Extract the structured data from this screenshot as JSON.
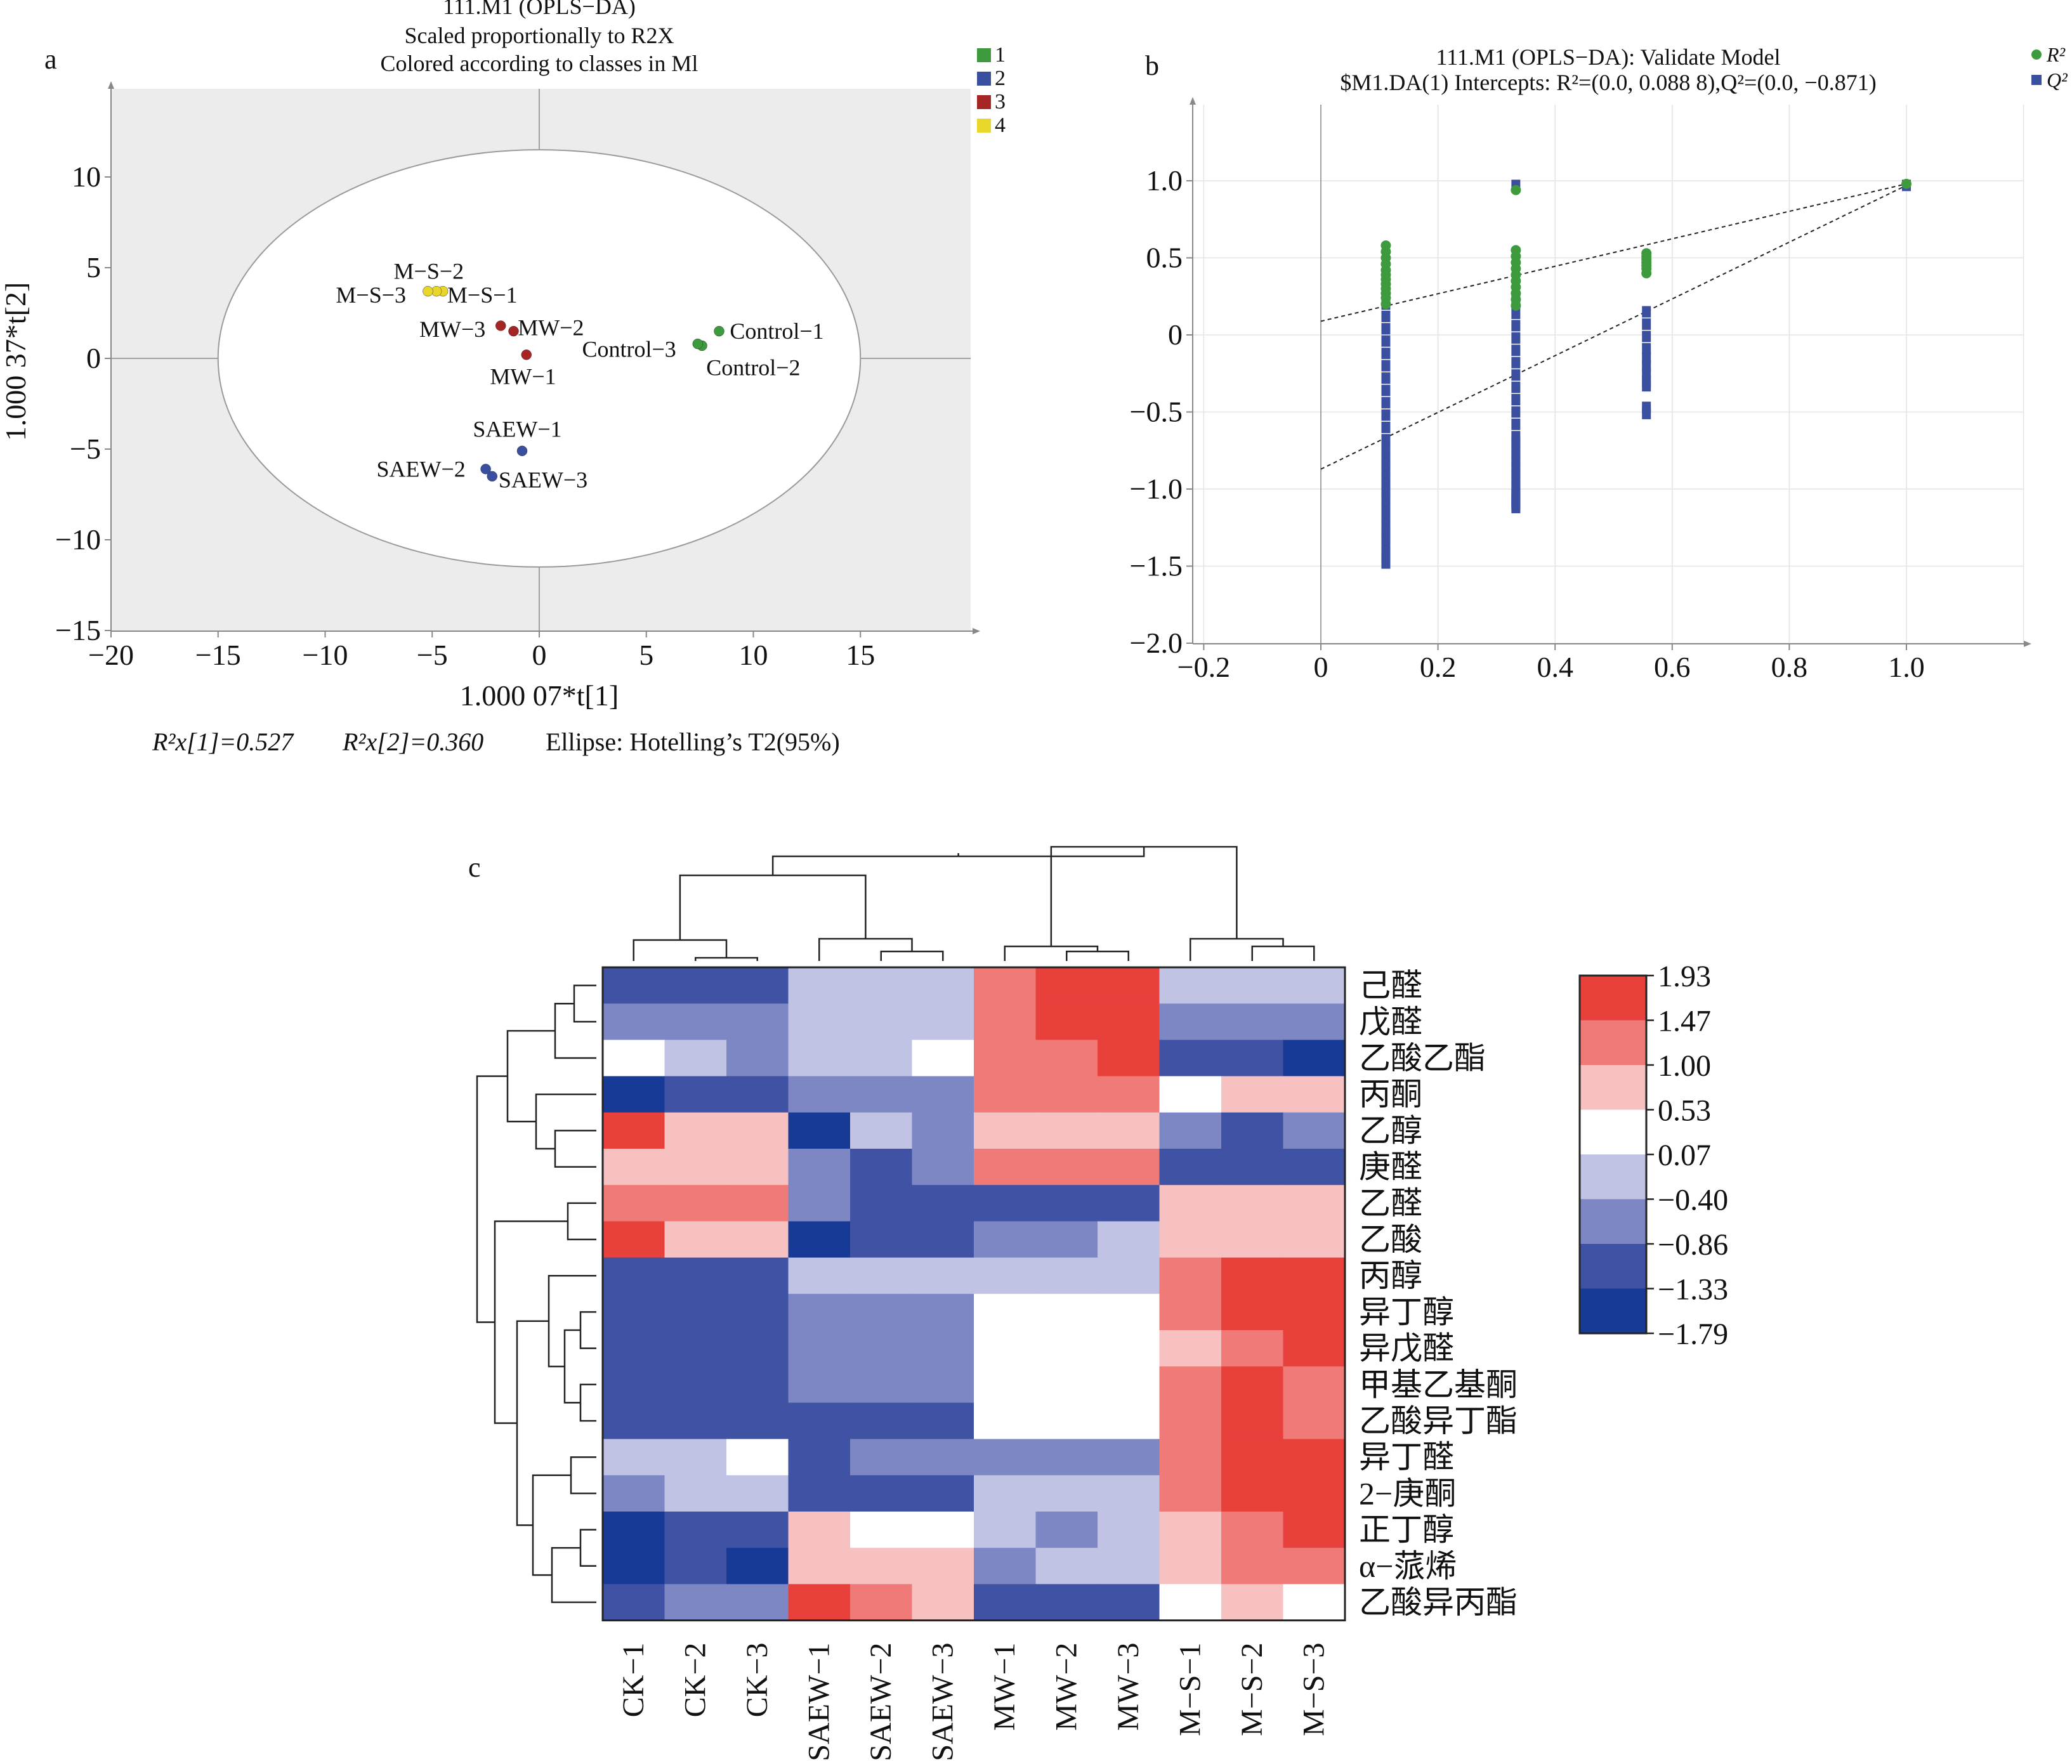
{
  "panel_a": {
    "letter": "a",
    "title_lines": [
      "111.M1 (OPLS−DA)",
      "Scaled proportionally to R2X",
      "Colored according to classes in Ml"
    ],
    "legend": [
      {
        "label": "1",
        "color": "#3d9a3d"
      },
      {
        "label": "2",
        "color": "#3a4fa0"
      },
      {
        "label": "3",
        "color": "#a52424"
      },
      {
        "label": "4",
        "color": "#e8d62a"
      }
    ],
    "xlabel": "1.000 07*t[1]",
    "ylabel": "1.000 37*t[2]",
    "footer": {
      "r2x1": "R²x[1]=0.527",
      "r2x2": "R²x[2]=0.360",
      "ellipse": "Ellipse: Hotelling’s T2(95%)"
    }
  },
  "panel_b": {
    "letter": "b",
    "title_lines": [
      "111.M1 (OPLS−DA): Validate Model",
      "$M1.DA(1) Intercepts: R²=(0.0, 0.088 8),Q²=(0.0, −0.871)"
    ],
    "legend": [
      {
        "label": "R²",
        "color": "#3d9a3d",
        "shape": "circle"
      },
      {
        "label": "Q²",
        "color": "#3a4fa0",
        "shape": "square"
      }
    ]
  },
  "panel_c": {
    "letter": "c",
    "colorbar": {
      "labels": [
        "1.93",
        "1.47",
        "1.00",
        "0.53",
        "0.07",
        "−0.40",
        "−0.86",
        "−1.33",
        "−1.79"
      ],
      "colors": [
        "#e8413c",
        "#f07a78",
        "#f7c0c1",
        "#ffffff",
        "#c0c3e3",
        "#7d87c4",
        "#4052a4",
        "#173a96"
      ]
    }
  },
  "chart_data": [
    {
      "type": "scatter",
      "panel": "a",
      "xlim": [
        -20,
        20
      ],
      "ylim": [
        -15,
        15
      ],
      "xticks": [
        -20,
        -15,
        -10,
        -5,
        0,
        5,
        10,
        15
      ],
      "yticks": [
        10,
        5,
        0,
        -5,
        -10,
        -15
      ],
      "tick_labels_x": [
        "−20",
        "−15",
        "−10",
        "−5",
        "0",
        "5",
        "10",
        "15"
      ],
      "tick_labels_y": [
        "10",
        "5",
        "0",
        "−5",
        "−10",
        "−15"
      ],
      "ellipse": {
        "cx": 0,
        "cy": 0,
        "rx": 15,
        "ry": 11.5
      },
      "points": [
        {
          "label": "Control-1",
          "x": 8.4,
          "y": 1.5,
          "cls": 1
        },
        {
          "label": "Control-2",
          "x": 7.6,
          "y": 0.7,
          "cls": 1
        },
        {
          "label": "Control-3",
          "x": 7.4,
          "y": 0.8,
          "cls": 1
        },
        {
          "label": "MW-1",
          "x": -0.6,
          "y": 0.2,
          "cls": 3
        },
        {
          "label": "MW-2",
          "x": -1.2,
          "y": 1.5,
          "cls": 3
        },
        {
          "label": "MW-3",
          "x": -1.8,
          "y": 1.8,
          "cls": 3
        },
        {
          "label": "M-S-1",
          "x": -4.5,
          "y": 3.7,
          "cls": 4
        },
        {
          "label": "M-S-2",
          "x": -4.8,
          "y": 3.7,
          "cls": 4
        },
        {
          "label": "M-S-3",
          "x": -5.2,
          "y": 3.7,
          "cls": 4
        },
        {
          "label": "SAEW-1",
          "x": -0.8,
          "y": -5.1,
          "cls": 2
        },
        {
          "label": "SAEW-2",
          "x": -2.5,
          "y": -6.1,
          "cls": 2
        },
        {
          "label": "SAEW-3",
          "x": -2.2,
          "y": -6.5,
          "cls": 2
        }
      ],
      "point_labels": [
        {
          "text": "Control−1",
          "x": 8.9,
          "y": 1.5
        },
        {
          "text": "Control−3",
          "x": 2.0,
          "y": 0.5
        },
        {
          "text": "Control−2",
          "x": 7.8,
          "y": -0.5
        },
        {
          "text": "MW−2",
          "x": -1.0,
          "y": 1.7
        },
        {
          "text": "MW−3",
          "x": -5.6,
          "y": 1.6
        },
        {
          "text": "MW−1",
          "x": -2.3,
          "y": -1.0
        },
        {
          "text": "M−S−2",
          "x": -6.8,
          "y": 4.8
        },
        {
          "text": "M−S−3",
          "x": -9.5,
          "y": 3.5
        },
        {
          "text": "M−S−1",
          "x": -4.3,
          "y": 3.5
        },
        {
          "text": "SAEW−1",
          "x": -3.1,
          "y": -3.9
        },
        {
          "text": "SAEW−2",
          "x": -7.6,
          "y": -6.1
        },
        {
          "text": "SAEW−3",
          "x": -1.9,
          "y": -6.7
        }
      ]
    },
    {
      "type": "scatter",
      "panel": "b",
      "xlim": [
        -0.2,
        1.2
      ],
      "ylim": [
        -2.0,
        1.4
      ],
      "xticks": [
        -0.2,
        0,
        0.2,
        0.4,
        0.6,
        0.8,
        1.0
      ],
      "yticks": [
        1.0,
        0.5,
        0,
        -0.5,
        -1.0,
        -1.5,
        -2.0
      ],
      "tick_labels_x": [
        "−0.2",
        "0",
        "0.2",
        "0.4",
        "0.6",
        "0.8",
        "1.0"
      ],
      "tick_labels_y": [
        "1.0",
        "0.5",
        "0",
        "−0.5",
        "−1.0",
        "−1.5",
        "−2.0"
      ],
      "series": [
        {
          "name": "R²",
          "x": [
            0.111,
            0.111,
            0.111,
            0.111,
            0.111,
            0.111,
            0.111,
            0.111,
            0.111,
            0.111,
            0.111,
            0.111,
            0.333,
            0.333,
            0.333,
            0.333,
            0.333,
            0.333,
            0.333,
            0.333,
            0.333,
            0.333,
            0.333,
            0.556,
            0.556,
            0.556,
            0.556,
            0.556,
            0.556,
            0.556,
            1.0
          ],
          "y": [
            0.58,
            0.54,
            0.5,
            0.46,
            0.42,
            0.39,
            0.36,
            0.33,
            0.3,
            0.27,
            0.24,
            0.2,
            0.94,
            0.55,
            0.51,
            0.47,
            0.43,
            0.39,
            0.35,
            0.31,
            0.27,
            0.23,
            0.19,
            0.53,
            0.51,
            0.49,
            0.47,
            0.45,
            0.43,
            0.4,
            0.98
          ]
        },
        {
          "name": "Q²",
          "x": [
            0.111,
            0.111,
            0.111,
            0.111,
            0.111,
            0.111,
            0.111,
            0.111,
            0.111,
            0.111,
            0.111,
            0.111,
            0.111,
            0.111,
            0.111,
            0.111,
            0.111,
            0.111,
            0.111,
            0.111,
            0.111,
            0.111,
            0.111,
            0.111,
            0.111,
            0.111,
            0.111,
            0.111,
            0.111,
            0.111,
            0.333,
            0.333,
            0.333,
            0.333,
            0.333,
            0.333,
            0.333,
            0.333,
            0.333,
            0.333,
            0.333,
            0.333,
            0.333,
            0.333,
            0.333,
            0.333,
            0.333,
            0.333,
            0.333,
            0.333,
            0.333,
            0.333,
            0.333,
            0.333,
            0.333,
            0.333,
            0.333,
            0.333,
            0.556,
            0.556,
            0.556,
            0.556,
            0.556,
            0.556,
            0.556,
            0.556,
            0.556,
            0.556,
            0.556,
            1.0
          ],
          "y": [
            0.2,
            0.12,
            0.04,
            -0.04,
            -0.12,
            -0.2,
            -0.28,
            -0.36,
            -0.44,
            -0.52,
            -0.6,
            -0.68,
            -0.74,
            -0.8,
            -0.84,
            -0.88,
            -0.93,
            -0.98,
            -1.02,
            -1.06,
            -1.12,
            -1.18,
            -1.24,
            -1.28,
            -1.32,
            -1.36,
            -1.41,
            -1.44,
            -1.46,
            -1.48,
            0.97,
            0.22,
            0.14,
            0.06,
            -0.02,
            -0.1,
            -0.18,
            -0.26,
            -0.34,
            -0.42,
            -0.5,
            -0.58,
            -0.66,
            -0.7,
            -0.74,
            -0.78,
            -0.82,
            -0.86,
            -0.9,
            -0.94,
            -0.98,
            -1.02,
            -1.04,
            -1.06,
            -1.08,
            -1.09,
            -1.1,
            -1.12,
            0.15,
            0.07,
            -0.01,
            -0.09,
            -0.15,
            -0.2,
            -0.25,
            -0.3,
            -0.33,
            -0.47,
            -0.51,
            0.97
          ]
        }
      ],
      "regression_lines": [
        {
          "name": "R²",
          "x": [
            0,
            1.0
          ],
          "y": [
            0.0888,
            0.98
          ]
        },
        {
          "name": "Q²",
          "x": [
            0,
            1.0
          ],
          "y": [
            -0.871,
            0.97
          ]
        }
      ]
    },
    {
      "type": "heatmap",
      "panel": "c",
      "columns": [
        "CK−1",
        "CK−2",
        "CK−3",
        "SAEW−1",
        "SAEW−2",
        "SAEW−3",
        "MW−1",
        "MW−2",
        "MW−3",
        "M−S−1",
        "M−S−2",
        "M−S−3"
      ],
      "rows": [
        "己醛",
        "戊醛",
        "乙酸乙酯",
        "丙酮",
        "乙醇",
        "庚醛",
        "乙醛",
        "乙酸",
        "丙醇",
        "异丁醇",
        "异戊醛",
        "甲基乙基酮",
        "乙酸异丁酯",
        "异丁醛",
        "2−庚酮",
        "正丁醇",
        "α−蒎烯",
        "乙酸异丙酯"
      ],
      "values": [
        [
          -1.1,
          -1.1,
          -1.1,
          -0.2,
          -0.2,
          -0.2,
          1.2,
          1.7,
          1.7,
          -0.2,
          -0.2,
          -0.2
        ],
        [
          -0.6,
          -0.6,
          -0.6,
          -0.2,
          -0.2,
          -0.2,
          1.2,
          1.7,
          1.7,
          -0.6,
          -0.6,
          -0.6
        ],
        [
          0.1,
          -0.2,
          -0.6,
          -0.2,
          -0.2,
          0.1,
          1.2,
          1.2,
          1.7,
          -1.1,
          -1.1,
          -1.6
        ],
        [
          -1.6,
          -1.1,
          -1.1,
          -0.6,
          -0.6,
          -0.6,
          1.2,
          1.2,
          1.2,
          0.1,
          0.8,
          0.8
        ],
        [
          1.7,
          0.8,
          0.8,
          -1.6,
          -0.2,
          -0.6,
          0.8,
          0.8,
          0.8,
          -0.6,
          -1.1,
          -0.6
        ],
        [
          0.8,
          0.8,
          0.8,
          -0.6,
          -1.1,
          -0.6,
          1.2,
          1.2,
          1.2,
          -1.1,
          -1.1,
          -1.1
        ],
        [
          1.2,
          1.2,
          1.2,
          -0.6,
          -1.1,
          -1.1,
          -1.1,
          -1.1,
          -1.1,
          0.8,
          0.8,
          0.8
        ],
        [
          1.7,
          0.8,
          0.8,
          -1.6,
          -1.1,
          -1.1,
          -0.6,
          -0.6,
          -0.2,
          0.8,
          0.8,
          0.8
        ],
        [
          -1.1,
          -1.1,
          -1.1,
          -0.2,
          -0.2,
          -0.2,
          -0.2,
          -0.2,
          -0.2,
          1.2,
          1.7,
          1.7
        ],
        [
          -1.1,
          -1.1,
          -1.1,
          -0.6,
          -0.6,
          -0.6,
          0.1,
          0.1,
          0.1,
          1.2,
          1.7,
          1.7
        ],
        [
          -1.1,
          -1.1,
          -1.1,
          -0.6,
          -0.6,
          -0.6,
          0.1,
          0.1,
          0.1,
          0.8,
          1.2,
          1.7
        ],
        [
          -1.1,
          -1.1,
          -1.1,
          -0.6,
          -0.6,
          -0.6,
          0.1,
          0.1,
          0.1,
          1.2,
          1.7,
          1.2
        ],
        [
          -1.1,
          -1.1,
          -1.1,
          -1.1,
          -1.1,
          -1.1,
          0.1,
          0.1,
          0.1,
          1.2,
          1.7,
          1.2
        ],
        [
          -0.2,
          -0.2,
          0.1,
          -1.1,
          -0.6,
          -0.6,
          -0.6,
          -0.6,
          -0.6,
          1.2,
          1.7,
          1.7
        ],
        [
          -0.6,
          -0.2,
          -0.2,
          -1.1,
          -1.1,
          -1.1,
          -0.2,
          -0.2,
          -0.2,
          1.2,
          1.7,
          1.7
        ],
        [
          -1.6,
          -1.1,
          -1.1,
          0.8,
          0.1,
          0.1,
          -0.2,
          -0.6,
          -0.2,
          0.8,
          1.2,
          1.7
        ],
        [
          -1.6,
          -1.1,
          -1.6,
          0.8,
          0.8,
          0.8,
          -0.6,
          -0.2,
          -0.2,
          0.8,
          1.2,
          1.2
        ],
        [
          -1.1,
          -0.6,
          -0.6,
          1.7,
          1.2,
          0.8,
          -1.1,
          -1.1,
          -1.1,
          0.1,
          0.8,
          0.1
        ]
      ],
      "vmin": -1.79,
      "vmax": 1.93
    }
  ]
}
